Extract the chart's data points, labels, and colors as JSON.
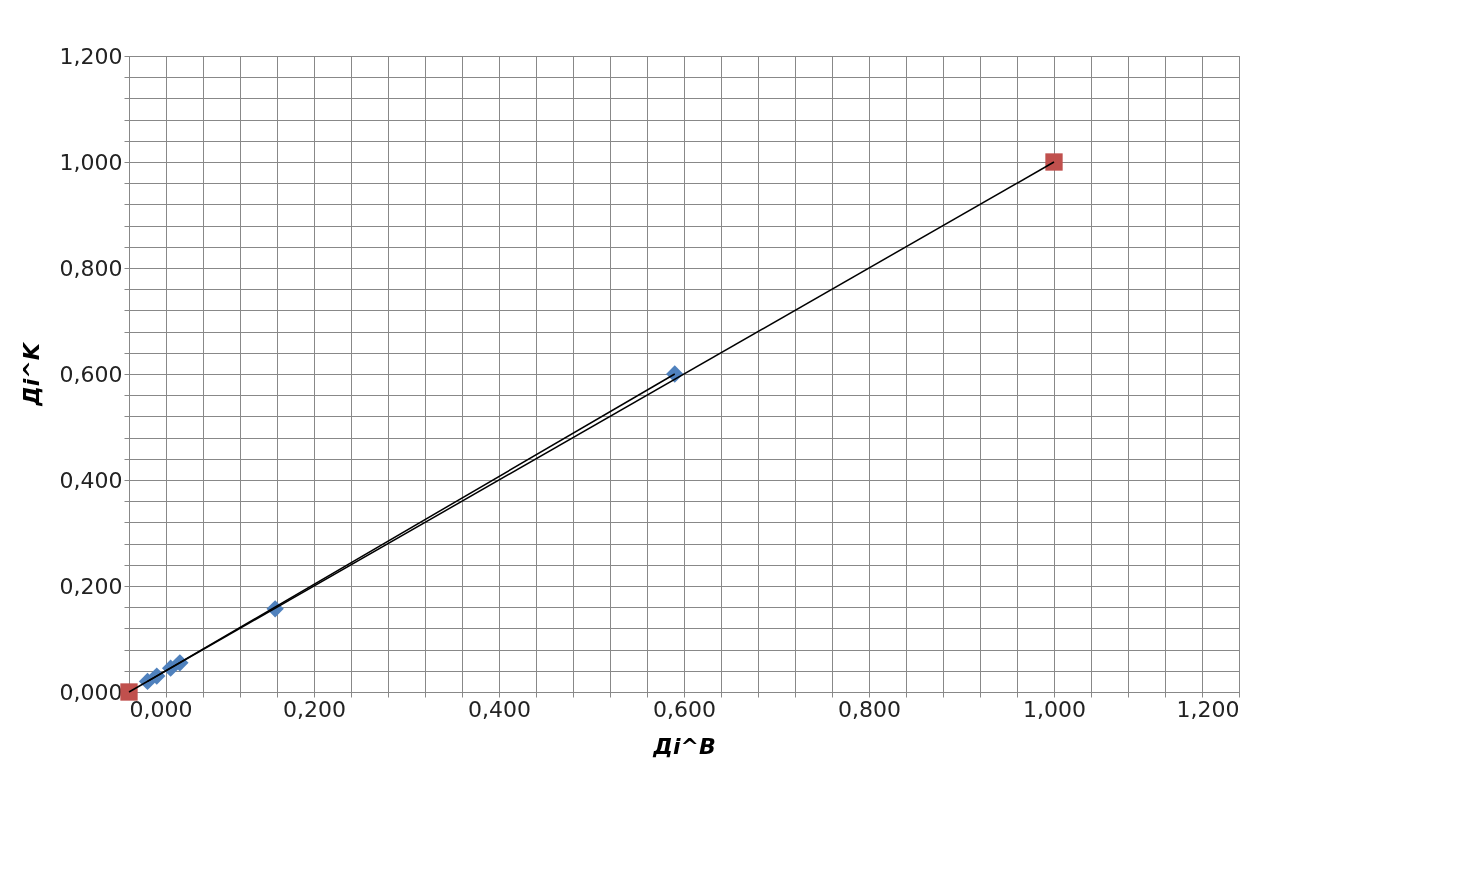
{
  "chart_data": {
    "type": "scatter",
    "xlabel": "Дi^B",
    "ylabel": "Дi^K",
    "xlim": [
      0,
      1.2
    ],
    "ylim": [
      0,
      1.2
    ],
    "xticks": [
      {
        "value": 0,
        "label": "0,000"
      },
      {
        "value": 0.04,
        "label": null
      },
      {
        "value": 0.08,
        "label": null
      },
      {
        "value": 0.12,
        "label": null
      },
      {
        "value": 0.16,
        "label": null
      },
      {
        "value": 0.2,
        "label": "0,200"
      },
      {
        "value": 0.24,
        "label": null
      },
      {
        "value": 0.28,
        "label": null
      },
      {
        "value": 0.32,
        "label": null
      },
      {
        "value": 0.36,
        "label": null
      },
      {
        "value": 0.4,
        "label": "0,400"
      },
      {
        "value": 0.44,
        "label": null
      },
      {
        "value": 0.48,
        "label": null
      },
      {
        "value": 0.52,
        "label": null
      },
      {
        "value": 0.56,
        "label": null
      },
      {
        "value": 0.6,
        "label": "0,600"
      },
      {
        "value": 0.64,
        "label": null
      },
      {
        "value": 0.68,
        "label": null
      },
      {
        "value": 0.72,
        "label": null
      },
      {
        "value": 0.76,
        "label": null
      },
      {
        "value": 0.8,
        "label": "0,800"
      },
      {
        "value": 0.84,
        "label": null
      },
      {
        "value": 0.88,
        "label": null
      },
      {
        "value": 0.92,
        "label": null
      },
      {
        "value": 0.96,
        "label": null
      },
      {
        "value": 1.0,
        "label": "1,000"
      },
      {
        "value": 1.04,
        "label": null
      },
      {
        "value": 1.08,
        "label": null
      },
      {
        "value": 1.12,
        "label": null
      },
      {
        "value": 1.16,
        "label": null
      },
      {
        "value": 1.2,
        "label": "1,200"
      }
    ],
    "yticks": [
      {
        "value": 0,
        "label": "0,000"
      },
      {
        "value": 0.04,
        "label": null
      },
      {
        "value": 0.08,
        "label": null
      },
      {
        "value": 0.12,
        "label": null
      },
      {
        "value": 0.16,
        "label": null
      },
      {
        "value": 0.2,
        "label": "0,200"
      },
      {
        "value": 0.24,
        "label": null
      },
      {
        "value": 0.28,
        "label": null
      },
      {
        "value": 0.32,
        "label": null
      },
      {
        "value": 0.36,
        "label": null
      },
      {
        "value": 0.4,
        "label": "0,400"
      },
      {
        "value": 0.44,
        "label": null
      },
      {
        "value": 0.48,
        "label": null
      },
      {
        "value": 0.52,
        "label": null
      },
      {
        "value": 0.56,
        "label": null
      },
      {
        "value": 0.6,
        "label": "0,600"
      },
      {
        "value": 0.64,
        "label": null
      },
      {
        "value": 0.68,
        "label": null
      },
      {
        "value": 0.72,
        "label": null
      },
      {
        "value": 0.76,
        "label": null
      },
      {
        "value": 0.8,
        "label": "0,800"
      },
      {
        "value": 0.84,
        "label": null
      },
      {
        "value": 0.88,
        "label": null
      },
      {
        "value": 0.92,
        "label": null
      },
      {
        "value": 0.96,
        "label": null
      },
      {
        "value": 1.0,
        "label": "1,000"
      },
      {
        "value": 1.04,
        "label": null
      },
      {
        "value": 1.08,
        "label": null
      },
      {
        "value": 1.12,
        "label": null
      },
      {
        "value": 1.16,
        "label": null
      },
      {
        "value": 1.2,
        "label": "1,200"
      }
    ],
    "grid": true,
    "series": [
      {
        "type": "scatter",
        "marker": "diamond",
        "color": "#4f81bd",
        "x": [
          0.02,
          0.03,
          0.045,
          0.055,
          0.158,
          0.59
        ],
        "values": [
          0.02,
          0.03,
          0.045,
          0.055,
          0.157,
          0.6
        ]
      },
      {
        "type": "scatter",
        "marker": "square",
        "color": "#c0504d",
        "x": [
          0,
          1.0
        ],
        "values": [
          0,
          1.0
        ]
      },
      {
        "type": "line",
        "marker": "none",
        "color": "#000000",
        "x": [
          0.02,
          0.59
        ],
        "values": [
          0.02,
          0.6
        ]
      },
      {
        "type": "line",
        "marker": "none",
        "color": "#000000",
        "x": [
          0,
          1.0
        ],
        "values": [
          0,
          1.0
        ]
      }
    ]
  }
}
